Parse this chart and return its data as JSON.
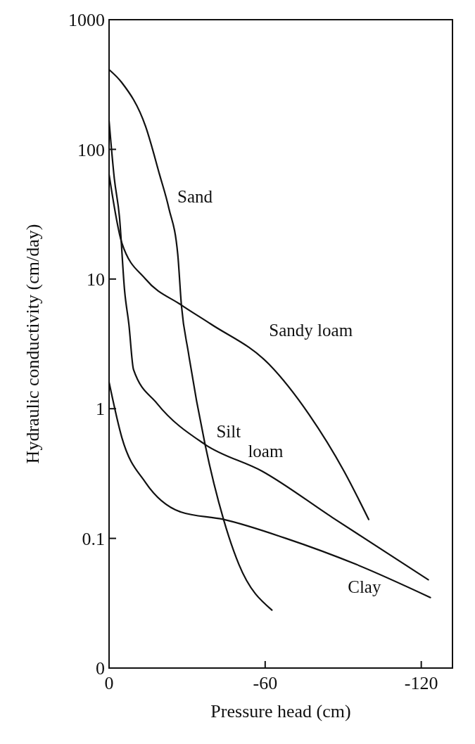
{
  "chart_data": {
    "type": "line",
    "xlabel": "Pressure head (cm)",
    "ylabel": "Hydraulic conductivity (cm/day)",
    "log": "y",
    "xlim": [
      0,
      -132
    ],
    "ylim": [
      0.01,
      1000
    ],
    "xticks": [
      0,
      -60,
      -120
    ],
    "yticks": [
      {
        "value": 0.01,
        "label": "0"
      },
      {
        "value": 0.1,
        "label": "0.1"
      },
      1,
      10,
      100,
      1000
    ],
    "grid": false,
    "marker": "none",
    "line_style": "solid",
    "series": [
      {
        "name": "Sand",
        "color": "#111111",
        "x": [
          0,
          -4.9,
          -14,
          -19.4,
          -23,
          -26.4,
          -27.8,
          -30.5,
          -36.9,
          -44,
          -49.9,
          -62.6
        ],
        "values": [
          412,
          327,
          151,
          64,
          35,
          15.5,
          6.3,
          2.7,
          0.53,
          0.14,
          0.063,
          0.028
        ]
      },
      {
        "name": "Sandy loam",
        "color": "#111111",
        "x": [
          0,
          -4.9,
          -14,
          -27.8,
          -39.1,
          -61.5,
          -76.9,
          -90.3,
          -99.8
        ],
        "values": [
          64,
          19,
          10,
          6.3,
          4.5,
          2.2,
          0.9,
          0.33,
          0.14
        ]
      },
      {
        "name": "Silt loam",
        "color": "#111111",
        "x": [
          0,
          -2,
          -4,
          -6,
          -7.6,
          -9.4,
          -18.4,
          -36.9,
          -58.8,
          -85.8,
          -122.7
        ],
        "values": [
          166,
          60,
          30,
          8,
          4.5,
          2,
          1.1,
          0.53,
          0.33,
          0.145,
          0.048
        ]
      },
      {
        "name": "Clay",
        "color": "#111111",
        "x": [
          0,
          -4.9,
          -14,
          -27.5,
          -44,
          -68,
          -95,
          -123.5
        ],
        "values": [
          1.6,
          0.6,
          0.27,
          0.16,
          0.14,
          0.1,
          0.063,
          0.035
        ]
      }
    ]
  }
}
